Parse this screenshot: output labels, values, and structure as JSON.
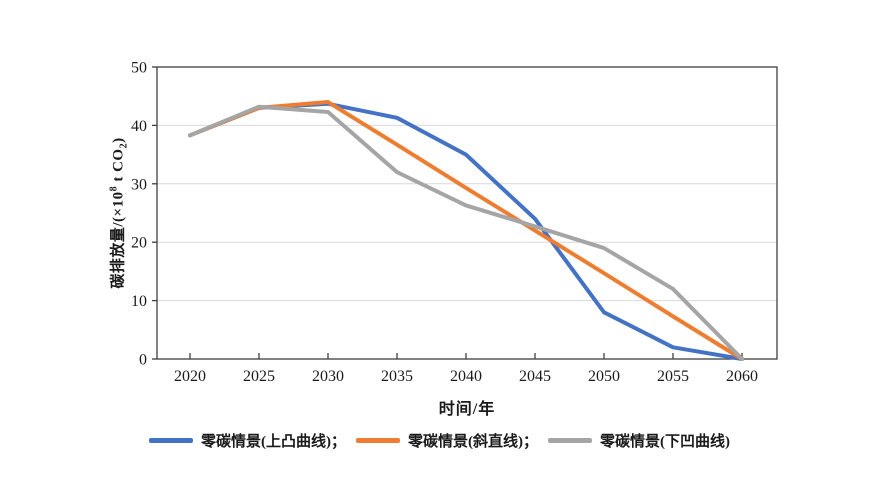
{
  "chart_data": {
    "type": "line",
    "x": [
      2020,
      2025,
      2030,
      2035,
      2040,
      2045,
      2050,
      2055,
      2060
    ],
    "series": [
      {
        "name": "零碳情景(上凸曲线)",
        "color": "#4472C4",
        "values": [
          38.3,
          43.0,
          43.7,
          41.3,
          35.0,
          24.0,
          8.0,
          2.0,
          0.0
        ]
      },
      {
        "name": "零碳情景(斜直线)",
        "color": "#ED7D31",
        "values": [
          38.3,
          43.0,
          44.0,
          36.7,
          29.3,
          22.0,
          14.7,
          7.3,
          0.0
        ]
      },
      {
        "name": "零碳情景(下凹曲线)",
        "color": "#A5A5A5",
        "values": [
          38.3,
          43.2,
          42.3,
          32.0,
          26.3,
          22.7,
          19.0,
          12.0,
          0.0
        ]
      }
    ],
    "legend_labels": [
      "零碳情景(上凸曲线)；",
      "零碳情景(斜直线)；",
      "零碳情景(下凹曲线)"
    ],
    "xlabel": "时间/年",
    "ylabel": "碳排放量/(×10⁸ t CO₂)",
    "ylabel_parts": {
      "prefix": "碳排放量/(×10",
      "sup": "8",
      "mid": " t CO",
      "sub": "2",
      "suffix": ")"
    },
    "xlim": [
      2017.6,
      2062.7
    ],
    "ylim": [
      0,
      50
    ],
    "y_ticks": [
      0,
      10,
      20,
      30,
      40,
      50
    ],
    "grid": "horizontal",
    "legend_position": "bottom"
  },
  "style_colors": {
    "axis": "#3f3f3f",
    "gridline": "#d9d9d9",
    "text": "#1a1a1a",
    "background": "#ffffff"
  }
}
